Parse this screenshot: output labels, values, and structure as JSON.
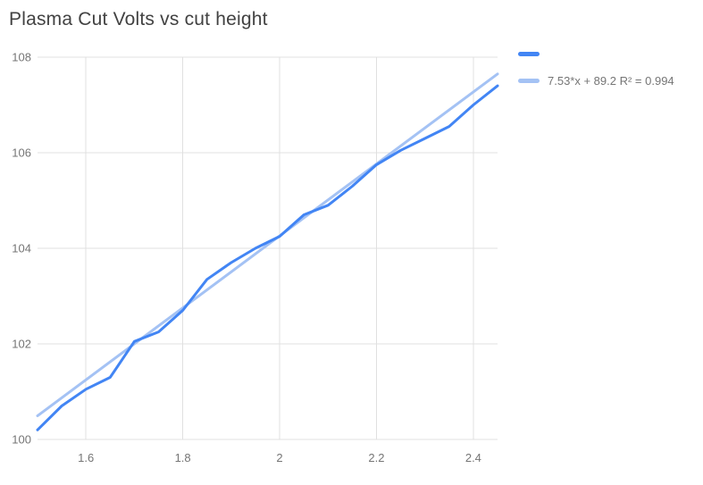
{
  "title": "Plasma Cut Volts vs cut height",
  "legend": {
    "items": [
      {
        "label": "",
        "color": "#4285f4"
      },
      {
        "label": "7.53*x + 89.2 R² = 0.994",
        "color": "#a4c2f4"
      }
    ]
  },
  "chart_data": {
    "type": "line",
    "title": "Plasma Cut Volts vs cut height",
    "xlabel": "",
    "ylabel": "",
    "grid": true,
    "legend_position": "right-top",
    "x": [
      1.5,
      1.55,
      1.6,
      1.65,
      1.7,
      1.75,
      1.8,
      1.85,
      1.9,
      1.95,
      2.0,
      2.05,
      2.1,
      2.15,
      2.2,
      2.25,
      2.3,
      2.35,
      2.4,
      2.45
    ],
    "series": [
      {
        "name": "",
        "color": "#4285f4",
        "values": [
          100.2,
          100.7,
          101.05,
          101.3,
          102.05,
          102.25,
          102.7,
          103.35,
          103.7,
          104.0,
          104.25,
          104.7,
          104.9,
          105.3,
          105.75,
          106.05,
          106.3,
          106.55,
          107.0,
          107.4
        ]
      }
    ],
    "trendline": {
      "slope": 7.53,
      "intercept": 89.2,
      "r2": 0.994,
      "label": "7.53*x + 89.2 R² = 0.994",
      "color": "#a4c2f4"
    },
    "xlim": [
      1.5,
      2.45
    ],
    "ylim": [
      100,
      108
    ],
    "x_ticks": [
      1.6,
      1.8,
      2,
      2.2,
      2.4
    ],
    "x_tick_labels": [
      "1.6",
      "1.8",
      "2",
      "2.2",
      "2.4"
    ],
    "y_ticks": [
      100,
      102,
      104,
      106,
      108
    ],
    "y_tick_labels": [
      "100",
      "102",
      "104",
      "106",
      "108"
    ]
  }
}
